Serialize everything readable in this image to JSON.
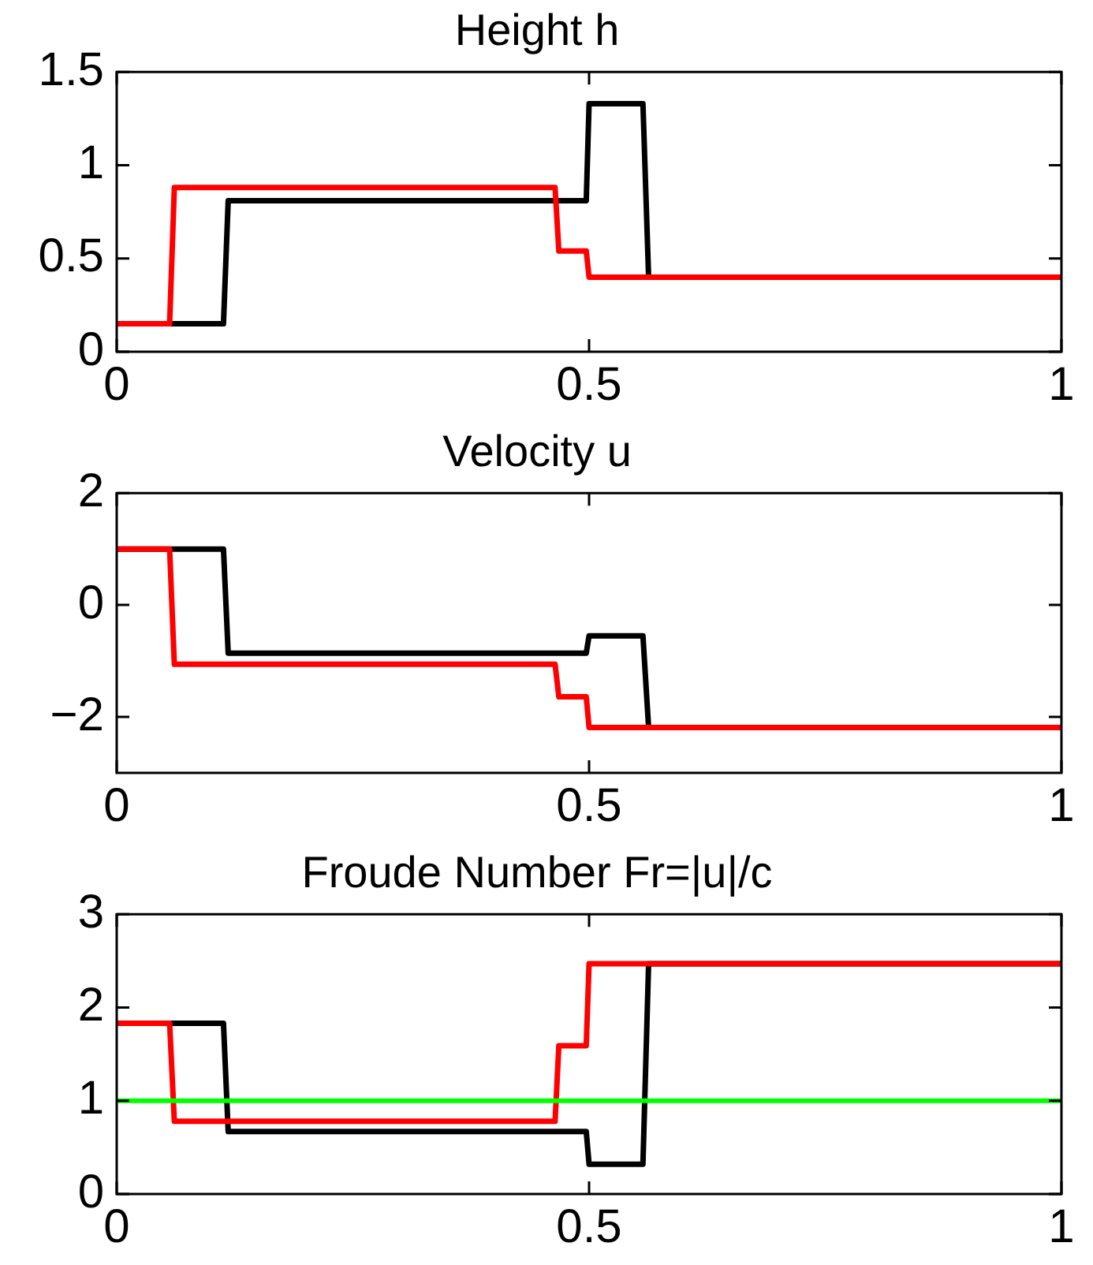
{
  "chart_data": [
    {
      "type": "line",
      "title": "Height h",
      "xlim": [
        0,
        1
      ],
      "xticks": [
        0,
        0.5,
        1
      ],
      "ylim": [
        0,
        1.5
      ],
      "yticks": [
        0,
        0.5,
        1,
        1.5
      ],
      "grid": false,
      "legend": false,
      "series": [
        {
          "color": "#ff0000",
          "x": [
            0,
            0.056,
            0.061,
            0.464,
            0.468,
            0.497,
            0.5,
            1
          ],
          "values": [
            0.15,
            0.15,
            0.88,
            0.88,
            0.54,
            0.54,
            0.4,
            0.4
          ]
        },
        {
          "color": "#000000",
          "x": [
            0,
            0.113,
            0.118,
            0.497,
            0.5,
            0.557,
            0.563,
            1
          ],
          "values": [
            0.15,
            0.15,
            0.81,
            0.81,
            1.33,
            1.33,
            0.4,
            0.4
          ]
        }
      ]
    },
    {
      "type": "line",
      "title": "Velocity u",
      "xlim": [
        0,
        1
      ],
      "xticks": [
        0,
        0.5,
        1
      ],
      "ylim": [
        -3,
        2
      ],
      "yticks": [
        {
          "value": -2,
          "label": "−2"
        },
        0,
        2
      ],
      "grid": false,
      "legend": false,
      "series": [
        {
          "color": "#ff0000",
          "x": [
            0,
            0.056,
            0.061,
            0.464,
            0.468,
            0.497,
            0.5,
            1
          ],
          "values": [
            1,
            1,
            -1.06,
            -1.06,
            -1.64,
            -1.64,
            -2.19,
            -2.19
          ]
        },
        {
          "color": "#000000",
          "x": [
            0,
            0.113,
            0.118,
            0.497,
            0.5,
            0.557,
            0.563,
            1
          ],
          "values": [
            1,
            1,
            -0.86,
            -0.86,
            -0.55,
            -0.55,
            -2.19,
            -2.19
          ]
        }
      ]
    },
    {
      "type": "line",
      "title": "Froude Number Fr=|u|/c",
      "xlim": [
        0,
        1
      ],
      "xticks": [
        0,
        0.5,
        1
      ],
      "ylim": [
        0,
        3
      ],
      "yticks": [
        0,
        1,
        2,
        3
      ],
      "grid": false,
      "legend": false,
      "ref_lines": [
        {
          "axis": "y",
          "value": 1,
          "color": "#00ff00"
        }
      ],
      "series": [
        {
          "color": "#ff0000",
          "x": [
            0,
            0.056,
            0.061,
            0.464,
            0.468,
            0.497,
            0.5,
            1
          ],
          "values": [
            1.83,
            1.83,
            0.78,
            0.78,
            1.59,
            1.59,
            2.47,
            2.47
          ]
        },
        {
          "color": "#000000",
          "x": [
            0,
            0.113,
            0.118,
            0.497,
            0.5,
            0.557,
            0.563,
            1
          ],
          "values": [
            1.83,
            1.83,
            0.67,
            0.67,
            0.32,
            0.32,
            2.47,
            2.47
          ]
        }
      ]
    }
  ]
}
